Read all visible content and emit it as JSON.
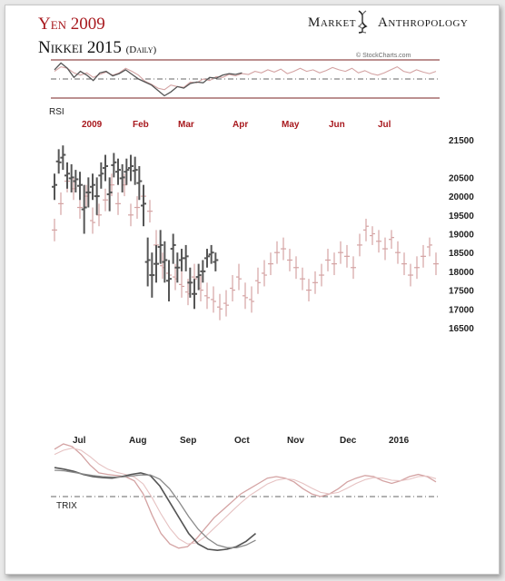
{
  "header": {
    "title_line1": "Yen 2009",
    "title_line2": "Nikkei 2015",
    "title_line2_sub": "(Daily)",
    "brand_left": "Market",
    "brand_right": "Anthropology",
    "credit": "© StockCharts.com"
  },
  "panels": {
    "rsi_label": "RSI",
    "trix_label": "TRIX"
  },
  "colors": {
    "yen": "#555555",
    "nikkei": "#d4a3a3",
    "title_red": "#a8191e",
    "rsi_band": "#7a2020"
  },
  "chart_data": {
    "type": "line",
    "title": "Yen 2009 / Nikkei 2015 (Daily)",
    "months_top": [
      "2009",
      "Feb",
      "Mar",
      "Apr",
      "May",
      "Jun",
      "Jul"
    ],
    "months_bottom": [
      "Jul",
      "Aug",
      "Sep",
      "Oct",
      "Nov",
      "Dec",
      "2016"
    ],
    "y_ticks": [
      21500,
      20500,
      20000,
      19500,
      19000,
      18500,
      18000,
      17500,
      17000,
      16500
    ],
    "ylim": [
      16500,
      21500
    ],
    "series": [
      {
        "name": "Yen 2009",
        "style": "ohlc",
        "x": [
          0,
          2,
          4,
          6,
          8,
          10,
          12,
          14,
          16,
          18,
          20,
          22,
          24,
          26,
          28,
          30,
          32,
          34,
          36,
          38,
          40,
          42,
          44,
          46,
          48,
          50,
          52,
          54,
          56,
          58,
          60,
          62,
          64,
          66,
          68,
          70,
          72,
          74,
          76
        ],
        "close": [
          20300,
          20900,
          21100,
          20600,
          20500,
          20450,
          20300,
          19700,
          20100,
          20300,
          20000,
          20600,
          20800,
          20100,
          20900,
          20700,
          20500,
          20700,
          20800,
          20700,
          20400,
          19800,
          18300,
          17900,
          18200,
          18700,
          18300,
          17800,
          18700,
          18100,
          18350,
          18400,
          17700,
          17400,
          17900,
          18000,
          18400,
          18500,
          18300
        ],
        "high": [
          20600,
          21250,
          21350,
          20900,
          20850,
          20700,
          20650,
          20300,
          20500,
          20600,
          20500,
          20900,
          21100,
          20500,
          21150,
          21000,
          20850,
          21000,
          21100,
          21050,
          20800,
          20300,
          18900,
          18500,
          18700,
          19100,
          18800,
          18300,
          19000,
          18500,
          18600,
          18700,
          18100,
          17800,
          18200,
          18300,
          18600,
          18700,
          18500
        ],
        "low": [
          19900,
          20600,
          20700,
          20200,
          20100,
          20100,
          19900,
          19000,
          19700,
          19900,
          19500,
          20200,
          20400,
          19600,
          20500,
          20300,
          20100,
          20300,
          20400,
          20300,
          19900,
          19200,
          17600,
          17300,
          17700,
          18200,
          17700,
          17200,
          18200,
          17700,
          18000,
          18000,
          17300,
          17000,
          17500,
          17700,
          18100,
          18200,
          18000
        ]
      },
      {
        "name": "Nikkei 2015",
        "style": "ohlc",
        "x": [
          0,
          3,
          6,
          9,
          12,
          15,
          18,
          21,
          24,
          27,
          30,
          33,
          36,
          39,
          42,
          45,
          48,
          51,
          54,
          57,
          60,
          63,
          66,
          69,
          72,
          75,
          78,
          81,
          84,
          87,
          90,
          93,
          96,
          99,
          102,
          105,
          108,
          111,
          114,
          117,
          120,
          123,
          126,
          129,
          132,
          135,
          138,
          141,
          144,
          147,
          150,
          153,
          156,
          159,
          162,
          165,
          168,
          171,
          174,
          177,
          180
        ],
        "close": [
          19100,
          19800,
          20400,
          20200,
          19700,
          20000,
          19300,
          19500,
          19900,
          20300,
          19800,
          20300,
          19500,
          19700,
          20000,
          19600,
          18700,
          18100,
          17900,
          17800,
          17600,
          17400,
          17800,
          17500,
          17300,
          17200,
          17000,
          17100,
          17500,
          17800,
          17300,
          17200,
          17700,
          17900,
          18200,
          18500,
          18600,
          18300,
          18100,
          17800,
          17500,
          17700,
          17900,
          18300,
          18200,
          18500,
          18400,
          18100,
          18700,
          19200,
          19000,
          18800,
          18600,
          18900,
          18500,
          18200,
          17900,
          18100,
          18400,
          18700,
          18200
        ],
        "high": [
          19400,
          20100,
          20700,
          20500,
          20000,
          20300,
          19700,
          19800,
          20200,
          20600,
          20100,
          20600,
          19800,
          20000,
          20300,
          19900,
          19100,
          18500,
          18300,
          18200,
          18000,
          17800,
          18200,
          17900,
          17700,
          17600,
          17400,
          17500,
          17900,
          18200,
          17700,
          17600,
          18100,
          18300,
          18500,
          18800,
          18900,
          18600,
          18400,
          18100,
          17800,
          18000,
          18200,
          18600,
          18500,
          18800,
          18700,
          18400,
          19000,
          19400,
          19200,
          19100,
          18900,
          19100,
          18800,
          18500,
          18200,
          18400,
          18700,
          18900,
          18500
        ],
        "low": [
          18800,
          19500,
          20100,
          19900,
          19400,
          19700,
          19000,
          19200,
          19600,
          20000,
          19500,
          20000,
          19200,
          19400,
          19700,
          19300,
          18300,
          17800,
          17600,
          17500,
          17300,
          17100,
          17500,
          17200,
          17000,
          16900,
          16700,
          16800,
          17200,
          17500,
          17000,
          16900,
          17400,
          17600,
          17900,
          18200,
          18300,
          18000,
          17800,
          17500,
          17200,
          17400,
          17600,
          18000,
          17900,
          18200,
          18100,
          17800,
          18400,
          18800,
          18700,
          18500,
          18300,
          18600,
          18200,
          17900,
          17600,
          17800,
          18100,
          18400,
          17900
        ]
      }
    ],
    "rsi": {
      "yen": [
        62,
        71,
        64,
        52,
        60,
        55,
        48,
        58,
        60,
        54,
        57,
        62,
        56,
        50,
        46,
        42,
        35,
        28,
        33,
        40,
        38,
        44,
        46,
        45,
        52,
        51,
        55,
        57,
        56,
        58
      ],
      "nikkei": [
        60,
        66,
        64,
        58,
        55,
        58,
        52,
        56,
        59,
        55,
        58,
        64,
        60,
        55,
        47,
        43,
        38,
        36,
        42,
        40,
        39,
        46,
        45,
        50,
        48,
        53,
        52,
        56,
        54,
        57,
        56,
        60,
        58,
        62,
        59,
        63,
        57,
        60,
        64,
        60,
        62,
        58,
        61,
        65,
        62,
        60,
        64,
        58,
        61,
        57,
        55,
        58,
        62,
        66,
        60,
        58,
        62,
        59,
        57,
        60
      ]
    },
    "trix": {
      "yen": [
        0.55,
        0.52,
        0.48,
        0.42,
        0.38,
        0.36,
        0.35,
        0.38,
        0.42,
        0.45,
        0.4,
        0.2,
        -0.1,
        -0.4,
        -0.7,
        -0.9,
        -1.0,
        -1.02,
        -1.0,
        -0.95,
        -0.85,
        -0.7
      ],
      "yen_signal": [
        0.5,
        0.49,
        0.46,
        0.43,
        0.4,
        0.38,
        0.37,
        0.37,
        0.39,
        0.41,
        0.41,
        0.33,
        0.15,
        -0.1,
        -0.38,
        -0.62,
        -0.8,
        -0.92,
        -0.97,
        -0.97,
        -0.92,
        -0.83
      ],
      "nikkei": [
        0.9,
        1.0,
        0.95,
        0.8,
        0.6,
        0.45,
        0.42,
        0.4,
        0.38,
        0.3,
        0.05,
        -0.35,
        -0.7,
        -0.9,
        -0.98,
        -0.95,
        -0.8,
        -0.6,
        -0.4,
        -0.25,
        -0.1,
        0.05,
        0.15,
        0.25,
        0.35,
        0.38,
        0.35,
        0.28,
        0.15,
        0.05,
        0.0,
        0.05,
        0.15,
        0.28,
        0.35,
        0.4,
        0.38,
        0.3,
        0.25,
        0.3,
        0.38,
        0.42,
        0.38,
        0.28
      ],
      "nikkei_signal": [
        0.8,
        0.88,
        0.92,
        0.88,
        0.76,
        0.62,
        0.52,
        0.46,
        0.42,
        0.37,
        0.24,
        -0.02,
        -0.33,
        -0.6,
        -0.8,
        -0.9,
        -0.88,
        -0.76,
        -0.6,
        -0.44,
        -0.28,
        -0.12,
        0.02,
        0.13,
        0.24,
        0.31,
        0.34,
        0.32,
        0.25,
        0.16,
        0.08,
        0.05,
        0.08,
        0.16,
        0.25,
        0.32,
        0.36,
        0.35,
        0.31,
        0.3,
        0.33,
        0.38,
        0.39,
        0.34
      ]
    }
  }
}
